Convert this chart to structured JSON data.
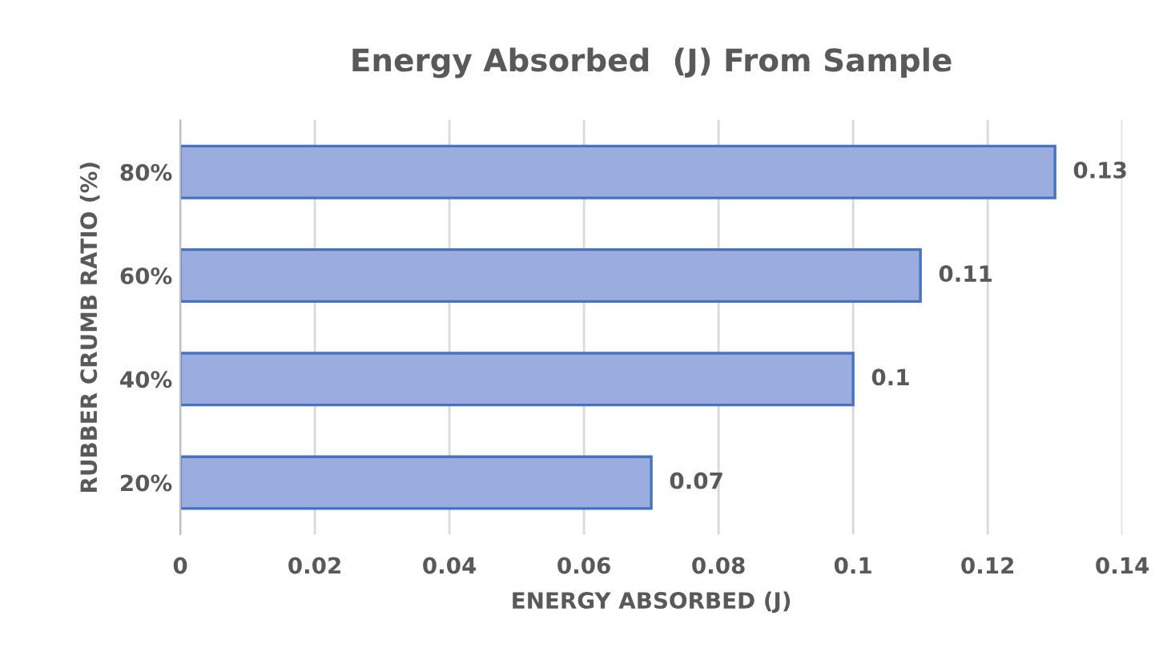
{
  "chart_data": {
    "type": "bar",
    "orientation": "horizontal",
    "title": "Energy Absorbed  (J) From Sample",
    "xlabel": "ENERGY ABSORBED (J)",
    "ylabel": "RUBBER CRUMB RATIO (%)",
    "categories": [
      "80%",
      "60%",
      "40%",
      "20%"
    ],
    "series": [
      {
        "color": "#9badde",
        "values": [
          0.13,
          0.11,
          0.1,
          0.07
        ]
      }
    ],
    "xlim": [
      0,
      0.14
    ],
    "xticks": [
      0,
      0.02,
      0.04,
      0.06,
      0.08,
      0.1,
      0.12,
      0.14
    ],
    "grid": "x",
    "data_labels": true
  }
}
